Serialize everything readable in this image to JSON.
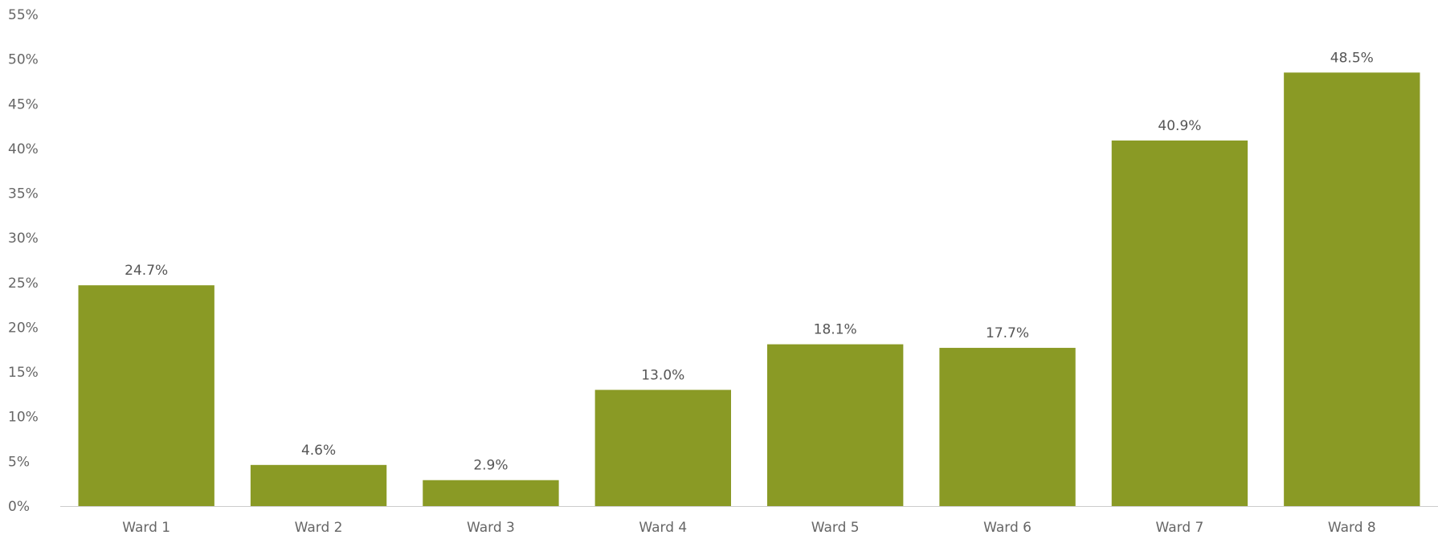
{
  "chart_data": {
    "type": "bar",
    "categories": [
      "Ward 1",
      "Ward 2",
      "Ward 3",
      "Ward 4",
      "Ward 5",
      "Ward 6",
      "Ward 7",
      "Ward 8"
    ],
    "values": [
      24.7,
      4.6,
      2.9,
      13.0,
      18.1,
      17.7,
      40.9,
      48.5
    ],
    "data_labels": [
      "24.7%",
      "4.6%",
      "2.9%",
      "13.0%",
      "18.1%",
      "17.7%",
      "40.9%",
      "48.5%"
    ],
    "title": "",
    "xlabel": "",
    "ylabel": "",
    "ylim": [
      0,
      55
    ],
    "yticks": [
      0,
      5,
      10,
      15,
      20,
      25,
      30,
      35,
      40,
      45,
      50,
      55
    ],
    "ytick_labels": [
      "0%",
      "5%",
      "10%",
      "15%",
      "20%",
      "25%",
      "30%",
      "35%",
      "40%",
      "45%",
      "50%",
      "55%"
    ],
    "grid": false,
    "legend": "none",
    "bar_color": "#8a9a25",
    "axis_color": "#cccccc"
  }
}
